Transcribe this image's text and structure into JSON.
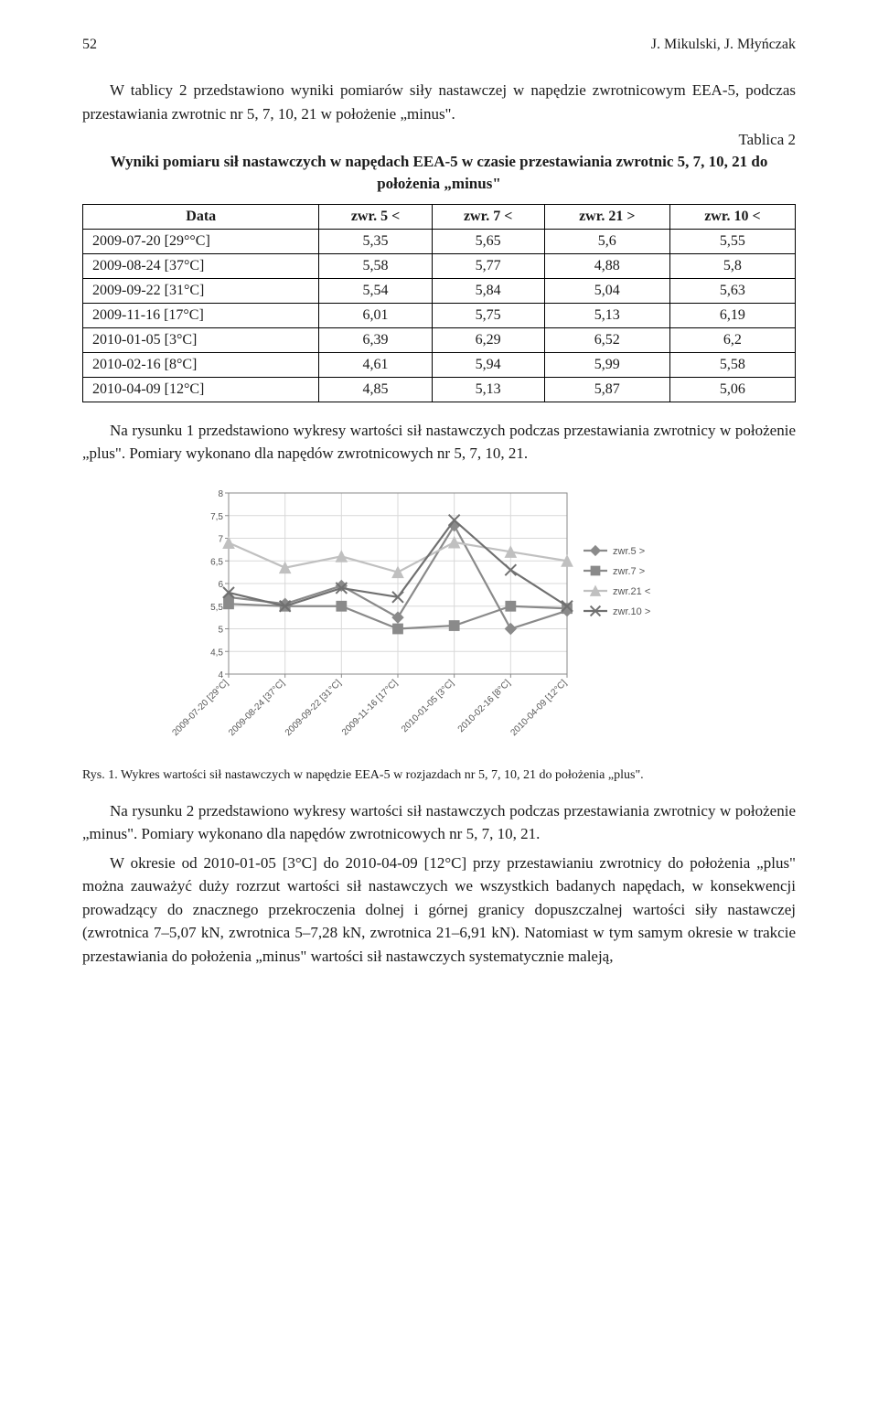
{
  "header": {
    "page_no": "52",
    "authors": "J. Mikulski, J. Młyńczak"
  },
  "para1": "W tablicy 2 przedstawiono wyniki pomiarów siły nastawczej w napędzie zwrotnicowym EEA-5, podczas przestawiania zwrotnic nr 5, 7, 10, 21 w położenie „minus\".",
  "table2": {
    "label": "Tablica 2",
    "caption": "Wyniki pomiaru sił nastawczych w napędach EEA-5 w czasie przestawiania zwrotnic 5, 7, 10, 21 do położenia „minus\"",
    "columns": [
      "Data",
      "zwr. 5 <",
      "zwr. 7 <",
      "zwr. 21 >",
      "zwr. 10 <"
    ],
    "rows": [
      [
        "2009-07-20 [29°°C]",
        "5,35",
        "5,65",
        "5,6",
        "5,55"
      ],
      [
        "2009-08-24 [37°C]",
        "5,58",
        "5,77",
        "4,88",
        "5,8"
      ],
      [
        "2009-09-22 [31°C]",
        "5,54",
        "5,84",
        "5,04",
        "5,63"
      ],
      [
        "2009-11-16 [17°C]",
        "6,01",
        "5,75",
        "5,13",
        "6,19"
      ],
      [
        "2010-01-05 [3°C]",
        "6,39",
        "6,29",
        "6,52",
        "6,2"
      ],
      [
        "2010-02-16 [8°C]",
        "4,61",
        "5,94",
        "5,99",
        "5,58"
      ],
      [
        "2010-04-09 [12°C]",
        "4,85",
        "5,13",
        "5,87",
        "5,06"
      ]
    ]
  },
  "para2": "Na rysunku 1 przedstawiono wykresy wartości sił nastawczych podczas przestawiania zwrotnicy w położenie „plus\". Pomiary wykonano dla napędów zwrotnicowych nr 5, 7, 10, 21.",
  "chart": {
    "type": "line",
    "ylim": [
      4,
      8
    ],
    "ytick_step": 0.5,
    "yticks": [
      "4",
      "4,5",
      "5",
      "5,5",
      "6",
      "6,5",
      "7",
      "7,5",
      "8"
    ],
    "categories": [
      "2009-07-20 [29°C]",
      "2009-08-24 [37°C]",
      "2009-09-22 [31°C]",
      "2009-11-16 [17°C]",
      "2010-01-05 [3°C]",
      "2010-02-16 [8°C]",
      "2010-04-09 [12°C]"
    ],
    "series": [
      {
        "name": "zwr.5 >",
        "marker": "diamond",
        "color": "#8a8a8a",
        "values": [
          5.7,
          5.55,
          5.95,
          5.25,
          7.28,
          5.0,
          5.4
        ]
      },
      {
        "name": "zwr.7 >",
        "marker": "square",
        "color": "#8a8a8a",
        "values": [
          5.55,
          5.5,
          5.5,
          5.0,
          5.07,
          5.5,
          5.45
        ]
      },
      {
        "name": "zwr.21 <",
        "marker": "triangle",
        "color": "#c0c0c0",
        "values": [
          6.9,
          6.35,
          6.6,
          6.25,
          6.91,
          6.7,
          6.5
        ]
      },
      {
        "name": "zwr.10 >",
        "marker": "x",
        "color": "#707070",
        "values": [
          5.8,
          5.5,
          5.9,
          5.7,
          7.4,
          6.3,
          5.5
        ]
      }
    ],
    "background_color": "#ffffff",
    "grid_color": "#d9d9d9",
    "axis_color": "#8a8a8a",
    "tick_fontsize": 10,
    "line_width": 2.2,
    "marker_size": 6
  },
  "fig1_caption": "Rys. 1. Wykres wartości sił nastawczych w napędzie EEA-5 w rozjazdach nr 5, 7, 10, 21 do położenia „plus\".",
  "para3": "Na rysunku 2 przedstawiono wykresy wartości sił nastawczych podczas przestawiania zwrotnicy w położenie „minus\". Pomiary wykonano dla napędów zwrotnicowych nr 5, 7, 10, 21.",
  "para4": "W okresie od 2010-01-05 [3°C] do 2010-04-09 [12°C] przy przestawianiu zwrotnicy do położenia „plus\" można zauważyć duży rozrzut wartości sił nastawczych we wszystkich badanych napędach, w konsekwencji prowadzący do znacznego przekroczenia dolnej i górnej granicy dopuszczalnej wartości siły nastawczej (zwrotnica 7–5,07 kN, zwrotnica 5–7,28 kN, zwrotnica 21–6,91 kN). Natomiast w tym samym okresie w trakcie przestawiania do położenia „minus\" wartości sił nastawczych systematycznie maleją,"
}
